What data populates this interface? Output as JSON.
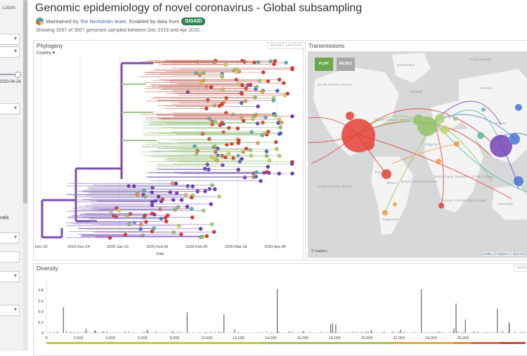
{
  "sidebar": {
    "login": "LOGIN",
    "date_value": "2020-04-24",
    "intervals_label": "vals"
  },
  "header": {
    "title": "Genomic epidemiology of novel coronavirus - Global subsampling",
    "byline_prefix": "Maintained by",
    "team_link": "the Nextstrain team",
    "byline_mid": ". Enabled by data from",
    "gisaid": "GISAID",
    "subtitle": "Showing 3567 of 3567 genomes sampled between Dec 2019 and Apr 2020."
  },
  "phylogeny": {
    "title": "Phylogeny",
    "reset_label": "RESET LAYOUT",
    "color_by": "Country",
    "x_ticks": [
      "-Dec-03",
      "2019-Dec-24",
      "2020-Jan-15",
      "2020-Feb-05",
      "2020-Feb-26",
      "2020-Mar-18",
      "2020-Apr-08"
    ],
    "x_label": "Date"
  },
  "transmissions": {
    "title": "Transmissions",
    "play_label": "PLAY",
    "reset_label": "RESET",
    "attribution": "Leaflet | © Mapbox © OpenS",
    "mapbox": "© mapbox",
    "places": [
      "Arctic Ocean",
      "Greenland",
      "Iceland",
      "North Pacific Ocean",
      "North Atlantic Ocean",
      "South Atlantic Ocean",
      "Indian Ocean",
      "South Pacific Ocean",
      "Australia",
      "Brazil",
      "Algeria",
      "Democratic Republic of the Congo",
      "South Africa",
      "Argentina",
      "Peru",
      "Russia",
      "China"
    ],
    "colors": {
      "red": "#e3372c",
      "green": "#8ec461",
      "purple": "#6e3bb5",
      "blue": "#3f6fd0",
      "orange": "#f0963a",
      "teal": "#4fb6a9"
    }
  },
  "diversity": {
    "title": "Diversity",
    "entropy_label": "ENTR",
    "y_ticks": [
      "0.8",
      "0.6",
      "0.4",
      "0.2",
      "0"
    ],
    "x_ticks": [
      "0",
      "2,000",
      "4,000",
      "6,000",
      "8,000",
      "10,000",
      "12,000",
      "14,000",
      "16,000",
      "18,000",
      "20,000",
      "22,000",
      "24,000",
      "26,000"
    ],
    "x_max": 29903,
    "bars": [
      {
        "pos": 1059,
        "h": 0.48
      },
      {
        "pos": 3037,
        "h": 0.05
      },
      {
        "pos": 8782,
        "h": 0.38
      },
      {
        "pos": 11083,
        "h": 0.35
      },
      {
        "pos": 14408,
        "h": 0.82
      },
      {
        "pos": 17747,
        "h": 0.16
      },
      {
        "pos": 17858,
        "h": 0.18
      },
      {
        "pos": 18060,
        "h": 0.16
      },
      {
        "pos": 23403,
        "h": 0.82
      },
      {
        "pos": 25563,
        "h": 0.55
      },
      {
        "pos": 26144,
        "h": 0.25
      },
      {
        "pos": 28144,
        "h": 0.45
      },
      {
        "pos": 28881,
        "h": 0.2
      },
      {
        "pos": 28882,
        "h": 0.18
      },
      {
        "pos": 11750,
        "h": 0.07
      },
      {
        "pos": 2480,
        "h": 0.08
      },
      {
        "pos": 6310,
        "h": 0.06
      },
      {
        "pos": 20268,
        "h": 0.05
      },
      {
        "pos": 22100,
        "h": 0.06
      },
      {
        "pos": 25429,
        "h": 0.08
      }
    ]
  }
}
